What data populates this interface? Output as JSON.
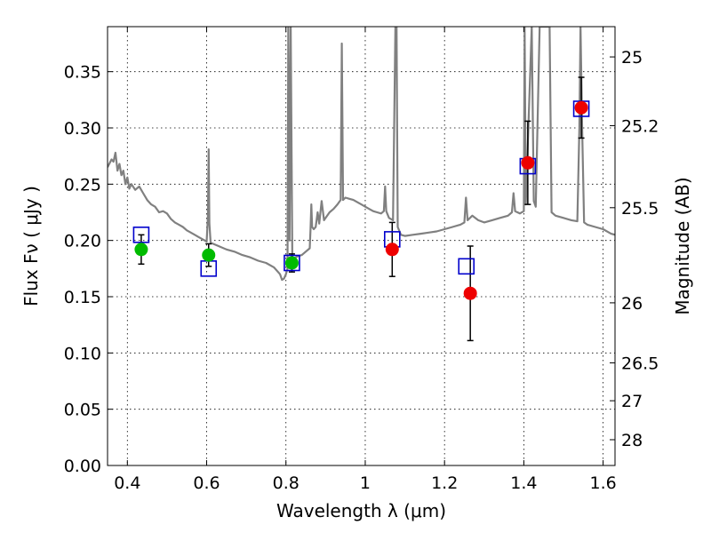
{
  "chart_data": {
    "type": "scatter",
    "title": "",
    "xlabel": "Wavelength  λ (μm)",
    "ylabel": "Flux  Fν  ( μJy )",
    "y2label": "Magnitude (AB)",
    "xlim": [
      0.35,
      1.63
    ],
    "ylim": [
      0.0,
      0.39
    ],
    "grid": true,
    "x_ticks": [
      0.4,
      0.6,
      0.8,
      1.0,
      1.2,
      1.4,
      1.6
    ],
    "x_tick_labels": [
      "0.4",
      "0.6",
      "0.8",
      "1",
      "1.2",
      "1.4",
      "1.6"
    ],
    "y_ticks": [
      0.0,
      0.05,
      0.1,
      0.15,
      0.2,
      0.25,
      0.3,
      0.35
    ],
    "y_tick_labels": [
      "0.00",
      "0.05",
      "0.10",
      "0.15",
      "0.20",
      "0.25",
      "0.30",
      "0.35"
    ],
    "mag_ticks": [
      {
        "mag": 25.0,
        "label": "25"
      },
      {
        "mag": 25.2,
        "label": "25.2"
      },
      {
        "mag": 25.5,
        "label": "25.5"
      },
      {
        "mag": 26.0,
        "label": "26"
      },
      {
        "mag": 26.5,
        "label": "26.5"
      },
      {
        "mag": 27.0,
        "label": "27"
      },
      {
        "mag": 28.0,
        "label": "28"
      }
    ],
    "colors": {
      "template": "#808080",
      "model": "#0000cc",
      "green": "#00bb00",
      "red": "#ee0000",
      "errorbar": "#000000"
    },
    "model_points": [
      {
        "x": 0.435,
        "y": 0.205
      },
      {
        "x": 0.605,
        "y": 0.175
      },
      {
        "x": 0.815,
        "y": 0.18
      },
      {
        "x": 1.068,
        "y": 0.201
      },
      {
        "x": 1.255,
        "y": 0.177
      },
      {
        "x": 1.41,
        "y": 0.266
      },
      {
        "x": 1.545,
        "y": 0.317
      }
    ],
    "series": [
      {
        "name": "green photometry",
        "color_key": "green",
        "points": [
          {
            "x": 0.435,
            "y": 0.192,
            "err": 0.013
          },
          {
            "x": 0.605,
            "y": 0.187,
            "err": 0.01
          },
          {
            "x": 0.815,
            "y": 0.18,
            "err": 0.008
          }
        ]
      },
      {
        "name": "red photometry",
        "color_key": "red",
        "points": [
          {
            "x": 1.068,
            "y": 0.192,
            "err": 0.024
          },
          {
            "x": 1.265,
            "y": 0.153,
            "err": 0.042
          },
          {
            "x": 1.41,
            "y": 0.269,
            "err": 0.037
          },
          {
            "x": 1.545,
            "y": 0.318,
            "err": 0.027
          }
        ]
      }
    ],
    "template_spectrum": [
      [
        0.35,
        0.265
      ],
      [
        0.36,
        0.272
      ],
      [
        0.365,
        0.27
      ],
      [
        0.37,
        0.278
      ],
      [
        0.375,
        0.262
      ],
      [
        0.38,
        0.268
      ],
      [
        0.385,
        0.258
      ],
      [
        0.39,
        0.262
      ],
      [
        0.395,
        0.25
      ],
      [
        0.4,
        0.256
      ],
      [
        0.405,
        0.246
      ],
      [
        0.41,
        0.25
      ],
      [
        0.42,
        0.245
      ],
      [
        0.43,
        0.248
      ],
      [
        0.44,
        0.242
      ],
      [
        0.45,
        0.236
      ],
      [
        0.46,
        0.232
      ],
      [
        0.47,
        0.23
      ],
      [
        0.48,
        0.225
      ],
      [
        0.49,
        0.226
      ],
      [
        0.5,
        0.224
      ],
      [
        0.51,
        0.219
      ],
      [
        0.52,
        0.216
      ],
      [
        0.53,
        0.214
      ],
      [
        0.54,
        0.212
      ],
      [
        0.55,
        0.209
      ],
      [
        0.56,
        0.207
      ],
      [
        0.57,
        0.205
      ],
      [
        0.58,
        0.203
      ],
      [
        0.59,
        0.201
      ],
      [
        0.6,
        0.199
      ],
      [
        0.603,
        0.22
      ],
      [
        0.605,
        0.281
      ],
      [
        0.607,
        0.215
      ],
      [
        0.61,
        0.198
      ],
      [
        0.63,
        0.195
      ],
      [
        0.65,
        0.192
      ],
      [
        0.67,
        0.19
      ],
      [
        0.69,
        0.187
      ],
      [
        0.71,
        0.185
      ],
      [
        0.73,
        0.182
      ],
      [
        0.75,
        0.18
      ],
      [
        0.77,
        0.176
      ],
      [
        0.785,
        0.17
      ],
      [
        0.79,
        0.165
      ],
      [
        0.795,
        0.166
      ],
      [
        0.8,
        0.17
      ],
      [
        0.804,
        0.175
      ],
      [
        0.806,
        0.39
      ],
      [
        0.809,
        0.2
      ],
      [
        0.812,
        0.39
      ],
      [
        0.816,
        0.185
      ],
      [
        0.82,
        0.184
      ],
      [
        0.83,
        0.186
      ],
      [
        0.84,
        0.187
      ],
      [
        0.85,
        0.19
      ],
      [
        0.86,
        0.193
      ],
      [
        0.862,
        0.21
      ],
      [
        0.864,
        0.232
      ],
      [
        0.866,
        0.212
      ],
      [
        0.87,
        0.21
      ],
      [
        0.875,
        0.212
      ],
      [
        0.88,
        0.225
      ],
      [
        0.884,
        0.215
      ],
      [
        0.89,
        0.235
      ],
      [
        0.896,
        0.218
      ],
      [
        0.9,
        0.22
      ],
      [
        0.91,
        0.225
      ],
      [
        0.92,
        0.228
      ],
      [
        0.93,
        0.232
      ],
      [
        0.938,
        0.236
      ],
      [
        0.941,
        0.375
      ],
      [
        0.944,
        0.236
      ],
      [
        0.95,
        0.238
      ],
      [
        0.96,
        0.237
      ],
      [
        0.97,
        0.236
      ],
      [
        0.98,
        0.234
      ],
      [
        0.99,
        0.232
      ],
      [
        1.0,
        0.23
      ],
      [
        1.01,
        0.228
      ],
      [
        1.02,
        0.226
      ],
      [
        1.03,
        0.225
      ],
      [
        1.04,
        0.224
      ],
      [
        1.047,
        0.226
      ],
      [
        1.05,
        0.248
      ],
      [
        1.053,
        0.226
      ],
      [
        1.06,
        0.22
      ],
      [
        1.07,
        0.218
      ],
      [
        1.076,
        0.39
      ],
      [
        1.079,
        0.39
      ],
      [
        1.082,
        0.212
      ],
      [
        1.09,
        0.205
      ],
      [
        1.1,
        0.204
      ],
      [
        1.12,
        0.205
      ],
      [
        1.14,
        0.206
      ],
      [
        1.16,
        0.207
      ],
      [
        1.18,
        0.208
      ],
      [
        1.2,
        0.21
      ],
      [
        1.22,
        0.212
      ],
      [
        1.24,
        0.214
      ],
      [
        1.25,
        0.216
      ],
      [
        1.254,
        0.238
      ],
      [
        1.258,
        0.218
      ],
      [
        1.27,
        0.222
      ],
      [
        1.285,
        0.218
      ],
      [
        1.3,
        0.216
      ],
      [
        1.32,
        0.218
      ],
      [
        1.34,
        0.22
      ],
      [
        1.36,
        0.222
      ],
      [
        1.37,
        0.225
      ],
      [
        1.374,
        0.242
      ],
      [
        1.378,
        0.226
      ],
      [
        1.39,
        0.224
      ],
      [
        1.4,
        0.226
      ],
      [
        1.402,
        0.39
      ],
      [
        1.405,
        0.232
      ],
      [
        1.42,
        0.39
      ],
      [
        1.425,
        0.235
      ],
      [
        1.43,
        0.23
      ],
      [
        1.44,
        0.39
      ],
      [
        1.45,
        0.39
      ],
      [
        1.465,
        0.39
      ],
      [
        1.47,
        0.225
      ],
      [
        1.48,
        0.222
      ],
      [
        1.5,
        0.22
      ],
      [
        1.52,
        0.218
      ],
      [
        1.535,
        0.217
      ],
      [
        1.54,
        0.3
      ],
      [
        1.543,
        0.39
      ],
      [
        1.547,
        0.3
      ],
      [
        1.552,
        0.216
      ],
      [
        1.56,
        0.214
      ],
      [
        1.58,
        0.212
      ],
      [
        1.6,
        0.21
      ],
      [
        1.62,
        0.206
      ],
      [
        1.63,
        0.205
      ]
    ]
  }
}
